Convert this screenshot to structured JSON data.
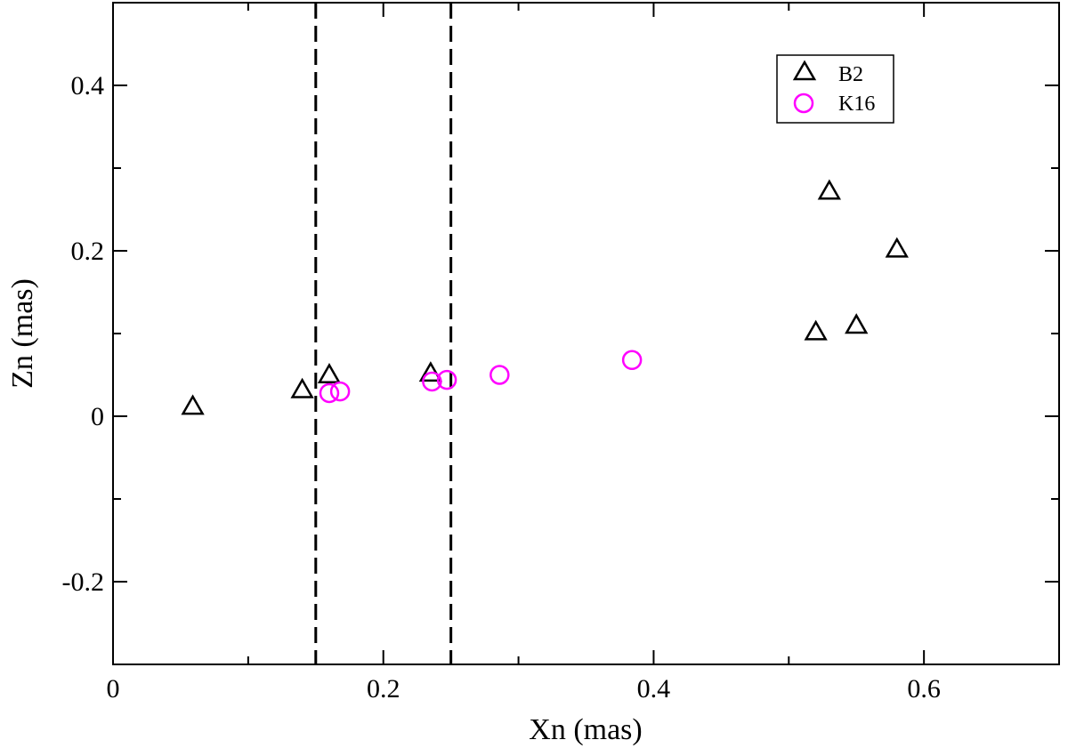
{
  "chart_data": {
    "type": "scatter",
    "title": "",
    "xlabel": "Xn (mas)",
    "ylabel": "Zn (mas)",
    "xlim": [
      0,
      0.7
    ],
    "ylim": [
      -0.3,
      0.5
    ],
    "xticks": [
      0,
      0.2,
      0.4,
      0.6
    ],
    "xtick_labels": [
      "0",
      "0.2",
      "0.4",
      "0.6"
    ],
    "xminor": [
      0.1,
      0.3,
      0.5
    ],
    "yticks": [
      -0.2,
      0,
      0.2,
      0.4
    ],
    "ytick_labels": [
      "-0.2",
      "0",
      "0.2",
      "0.4"
    ],
    "yminor": [
      -0.1,
      0.1,
      0.3
    ],
    "vlines": [
      0.15,
      0.25
    ],
    "grid": false,
    "legend_position": "top-right",
    "series": [
      {
        "name": "B2",
        "marker": "triangle",
        "color": "#000000",
        "points": [
          {
            "x": 0.059,
            "y": 0.012
          },
          {
            "x": 0.14,
            "y": 0.032
          },
          {
            "x": 0.16,
            "y": 0.05
          },
          {
            "x": 0.235,
            "y": 0.052
          },
          {
            "x": 0.52,
            "y": 0.102
          },
          {
            "x": 0.53,
            "y": 0.272
          },
          {
            "x": 0.55,
            "y": 0.11
          },
          {
            "x": 0.58,
            "y": 0.202
          }
        ]
      },
      {
        "name": "K16",
        "marker": "circle",
        "color": "#ff00ff",
        "points": [
          {
            "x": 0.16,
            "y": 0.028
          },
          {
            "x": 0.168,
            "y": 0.03
          },
          {
            "x": 0.236,
            "y": 0.042
          },
          {
            "x": 0.247,
            "y": 0.044
          },
          {
            "x": 0.286,
            "y": 0.05
          },
          {
            "x": 0.384,
            "y": 0.068
          }
        ]
      }
    ]
  }
}
